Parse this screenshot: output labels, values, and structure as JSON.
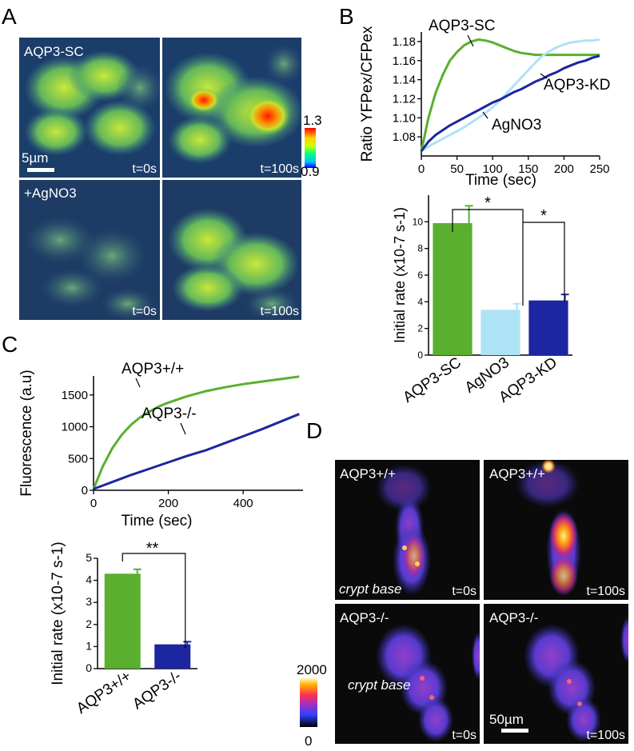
{
  "panels": {
    "A": {
      "letter": "A",
      "label_sc": "AQP3-SC",
      "label_ag": "+AgNO3",
      "scale_text": "5µm",
      "t0": "t=0s",
      "t100": "t=100s",
      "colorbar_max": "1.3",
      "colorbar_min": "0.9"
    },
    "B": {
      "letter": "B"
    },
    "C": {
      "letter": "C"
    },
    "D": {
      "letter": "D",
      "wt": "AQP3+/+",
      "ko": "AQP3-/-",
      "crypt_base": "crypt base",
      "t0": "t=0s",
      "t100": "t=100s",
      "scale_text": "50µm",
      "colorbar_max": "2000",
      "colorbar_min": "0"
    }
  },
  "colors": {
    "sc": "#5aaf2e",
    "agno3": "#aee3f5",
    "kd": "#1c26a0",
    "wt": "#5aaf2e",
    "ko": "#1c26a0"
  },
  "chart_data": [
    {
      "id": "B-top",
      "type": "line",
      "xlabel": "Time (sec)",
      "ylabel": "Ratio YFPex/CFPex",
      "xlim": [
        0,
        250
      ],
      "ylim": [
        1.06,
        1.19
      ],
      "xticks": [
        "0",
        "50",
        "100",
        "150",
        "200",
        "250"
      ],
      "yticks": [
        "1.08",
        "1.10",
        "1.12",
        "1.14",
        "1.16",
        "1.18"
      ],
      "series": [
        {
          "name": "AQP3-SC",
          "x": [
            0,
            10,
            20,
            30,
            40,
            50,
            60,
            70,
            80,
            90,
            100,
            110,
            120,
            130,
            140,
            150,
            160,
            170,
            180,
            190,
            200,
            210,
            220,
            230,
            240,
            250
          ],
          "y": [
            1.065,
            1.1,
            1.126,
            1.145,
            1.16,
            1.169,
            1.176,
            1.18,
            1.182,
            1.181,
            1.179,
            1.176,
            1.173,
            1.17,
            1.168,
            1.167,
            1.166,
            1.166,
            1.166,
            1.166,
            1.166,
            1.166,
            1.166,
            1.166,
            1.166,
            1.166
          ]
        },
        {
          "name": "AgNO3",
          "x": [
            0,
            10,
            20,
            30,
            40,
            50,
            60,
            70,
            80,
            90,
            100,
            110,
            120,
            130,
            140,
            150,
            160,
            170,
            180,
            190,
            200,
            210,
            220,
            230,
            240,
            250
          ],
          "y": [
            1.065,
            1.07,
            1.074,
            1.078,
            1.082,
            1.086,
            1.09,
            1.095,
            1.1,
            1.105,
            1.111,
            1.118,
            1.126,
            1.134,
            1.142,
            1.15,
            1.158,
            1.165,
            1.17,
            1.174,
            1.177,
            1.179,
            1.18,
            1.181,
            1.181,
            1.182
          ]
        },
        {
          "name": "AQP3-KD",
          "x": [
            0,
            10,
            20,
            30,
            40,
            50,
            60,
            70,
            80,
            90,
            100,
            110,
            120,
            130,
            140,
            150,
            160,
            170,
            180,
            190,
            200,
            210,
            220,
            230,
            240,
            250
          ],
          "y": [
            1.065,
            1.075,
            1.082,
            1.087,
            1.092,
            1.096,
            1.1,
            1.104,
            1.108,
            1.112,
            1.116,
            1.119,
            1.123,
            1.127,
            1.13,
            1.134,
            1.138,
            1.141,
            1.145,
            1.148,
            1.152,
            1.155,
            1.158,
            1.16,
            1.163,
            1.165
          ]
        }
      ]
    },
    {
      "id": "B-bottom",
      "type": "bar",
      "ylabel": "Initial rate (x10-7 s-1)",
      "ylim": [
        0,
        12
      ],
      "yticks": [
        "0",
        "2",
        "4",
        "6",
        "8",
        "10"
      ],
      "categories": [
        "AQP3-SC",
        "AgNO3",
        "AQP3-KD"
      ],
      "values": [
        9.9,
        3.4,
        4.1
      ],
      "errors": [
        1.3,
        0.45,
        0.45
      ],
      "significance": [
        "*",
        "*"
      ]
    },
    {
      "id": "C-top",
      "type": "line",
      "xlabel": "Time (sec)",
      "ylabel": "Fluorescence (a.u)",
      "xlim": [
        0,
        560
      ],
      "ylim": [
        0,
        1800
      ],
      "xticks": [
        "0",
        "200",
        "400"
      ],
      "yticks": [
        "0",
        "500",
        "1000",
        "1500"
      ],
      "series": [
        {
          "name": "AQP3+/+",
          "x": [
            0,
            25,
            50,
            75,
            100,
            125,
            150,
            175,
            200,
            250,
            300,
            350,
            400,
            450,
            500,
            550
          ],
          "y": [
            20,
            380,
            660,
            870,
            1030,
            1150,
            1240,
            1320,
            1380,
            1480,
            1560,
            1620,
            1670,
            1710,
            1750,
            1790
          ]
        },
        {
          "name": "AQP3-/-",
          "x": [
            0,
            50,
            100,
            150,
            200,
            250,
            300,
            350,
            400,
            450,
            500,
            550
          ],
          "y": [
            20,
            130,
            240,
            340,
            440,
            540,
            630,
            740,
            850,
            960,
            1080,
            1200
          ]
        }
      ]
    },
    {
      "id": "C-bottom",
      "type": "bar",
      "ylabel": "Initial rate (x10-7 s-1)",
      "ylim": [
        0,
        5
      ],
      "yticks": [
        "0",
        "1",
        "2",
        "3",
        "4",
        "5"
      ],
      "categories": [
        "AQP3+/+",
        "AQP3-/-"
      ],
      "values": [
        4.3,
        1.1
      ],
      "errors": [
        0.2,
        0.12
      ],
      "significance": [
        "**"
      ]
    }
  ]
}
